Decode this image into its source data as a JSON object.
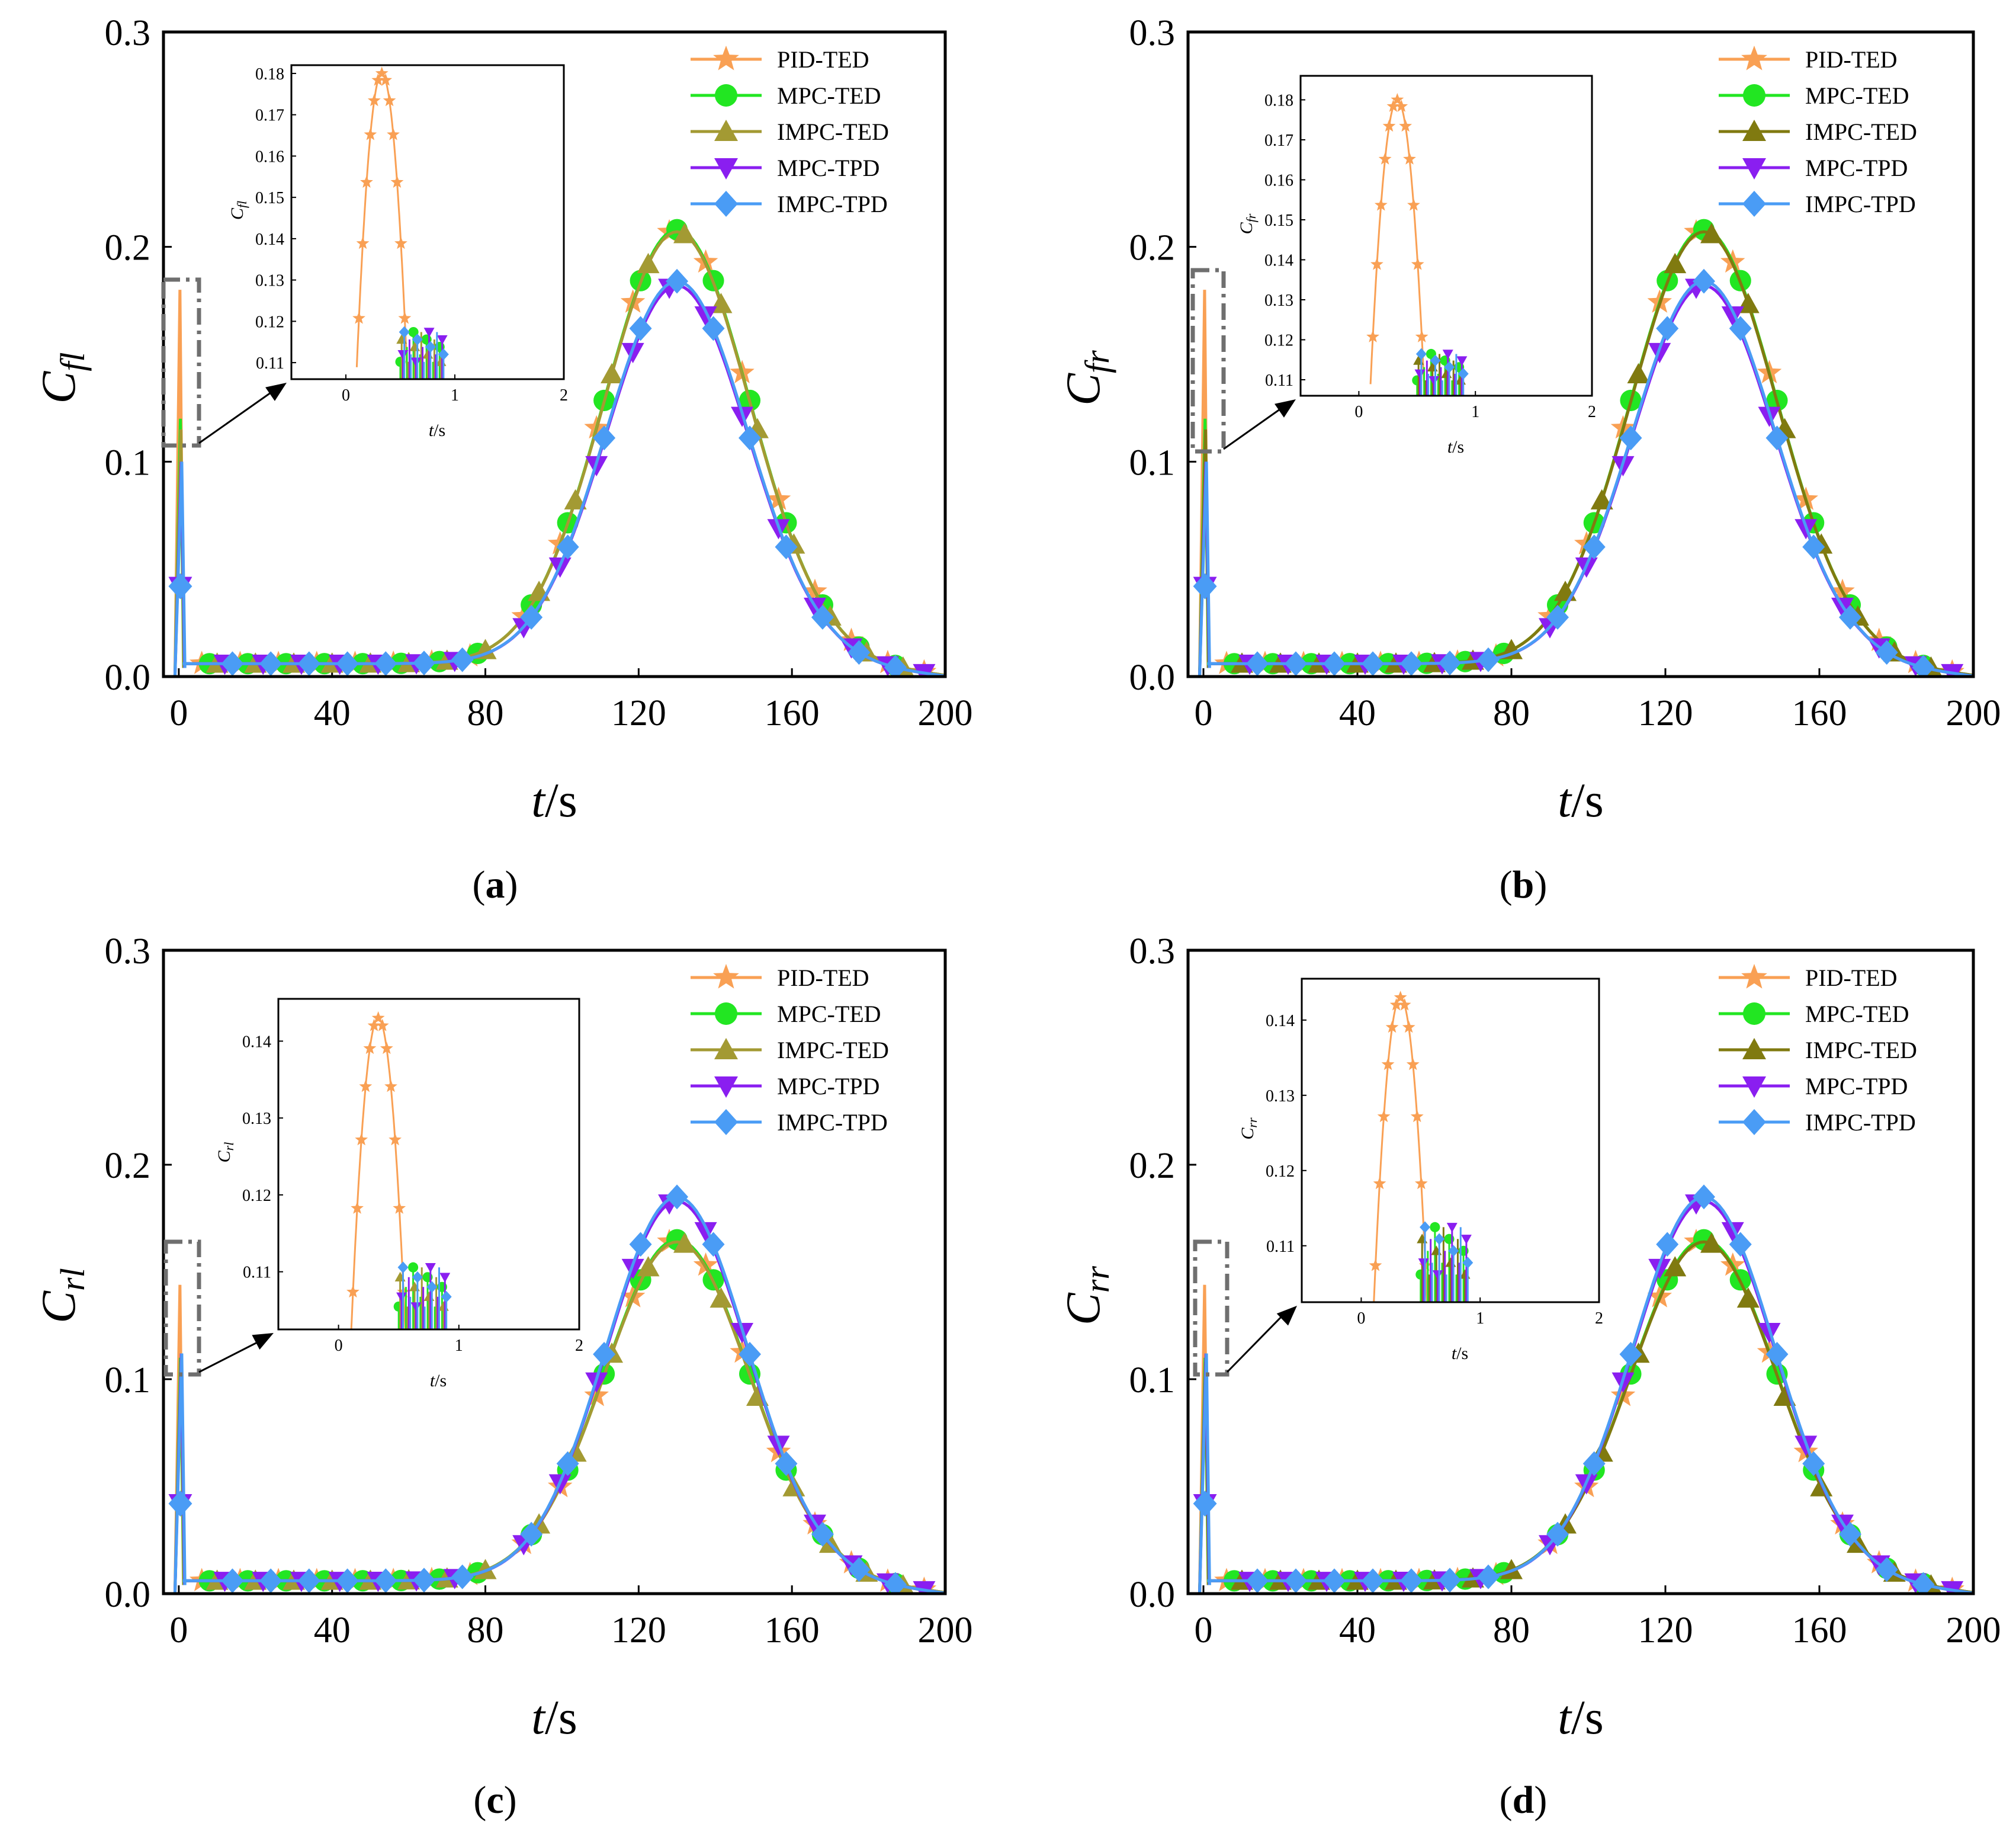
{
  "figure": {
    "panels": [
      {
        "id": "a",
        "caption_label": "a",
        "ylabel_main": "C",
        "ylabel_sub": "fl",
        "xlabel_main": "t",
        "xlabel_unit": "/s",
        "inset_ylabel_main": "C",
        "inset_ylabel_sub": "fl"
      },
      {
        "id": "b",
        "caption_label": "b",
        "ylabel_main": "C",
        "ylabel_sub": "fr",
        "xlabel_main": "t",
        "xlabel_unit": "/s",
        "inset_ylabel_main": "C",
        "inset_ylabel_sub": "fr"
      },
      {
        "id": "c",
        "caption_label": "c",
        "ylabel_main": "C",
        "ylabel_sub": "rl",
        "xlabel_main": "t",
        "xlabel_unit": "/s",
        "inset_ylabel_main": "C",
        "inset_ylabel_sub": "rl"
      },
      {
        "id": "d",
        "caption_label": "d",
        "ylabel_main": "C",
        "ylabel_sub": "rr",
        "xlabel_main": "t",
        "xlabel_unit": "/s",
        "inset_ylabel_main": "C",
        "inset_ylabel_sub": "rr"
      }
    ]
  },
  "chart_data": [
    {
      "type": "line",
      "panel": "a",
      "title": "",
      "xlabel": "t/s",
      "ylabel": "C_fl",
      "xlim": [
        -4,
        200
      ],
      "ylim": [
        0,
        0.3
      ],
      "xticks": [
        0,
        40,
        80,
        120,
        160,
        200
      ],
      "yticks": [
        0.0,
        0.1,
        0.2,
        0.3
      ],
      "xtick_labels": [
        "0",
        "40",
        "80",
        "120",
        "160",
        "200"
      ],
      "ytick_labels": [
        "0.0",
        "0.1",
        "0.2",
        "0.3"
      ],
      "legend": "top-right",
      "series": [
        {
          "name": "PID-TED",
          "color": "#f9a054",
          "marker": "star",
          "spike": 0.18,
          "plateau": 0.006,
          "peak": 0.208,
          "center": 130,
          "width": 19
        },
        {
          "name": "MPC-TED",
          "color": "#22e622",
          "marker": "circle",
          "spike": 0.12,
          "plateau": 0.006,
          "peak": 0.208,
          "center": 130,
          "width": 19
        },
        {
          "name": "IMPC-TED",
          "color": "#a39a33",
          "marker": "triangle-up",
          "spike": 0.115,
          "plateau": 0.006,
          "peak": 0.207,
          "center": 130,
          "width": 19
        },
        {
          "name": "MPC-TPD",
          "color": "#8a1ef0",
          "marker": "triangle-down",
          "spike": 0.1,
          "plateau": 0.006,
          "peak": 0.182,
          "center": 130,
          "width": 18.5
        },
        {
          "name": "IMPC-TPD",
          "color": "#4a9cf5",
          "marker": "diamond",
          "spike": 0.1,
          "plateau": 0.006,
          "peak": 0.184,
          "center": 130,
          "width": 18.5
        }
      ],
      "inset": {
        "xlim": [
          -0.5,
          2
        ],
        "ylim": [
          0.106,
          0.182
        ],
        "xticks": [
          0,
          1,
          2
        ],
        "yticks": [
          0.11,
          0.12,
          0.13,
          0.14,
          0.15,
          0.16,
          0.17,
          0.18
        ],
        "xtick_labels": [
          "0",
          "1",
          "2"
        ],
        "ytick_labels": [
          "0.11",
          "0.12",
          "0.13",
          "0.14",
          "0.15",
          "0.16",
          "0.17",
          "0.18"
        ],
        "xlabel": "t/s",
        "ylabel": "C_fl",
        "pid_peak": 0.18,
        "cluster_top": 0.118
      }
    },
    {
      "type": "line",
      "panel": "b",
      "title": "",
      "xlabel": "t/s",
      "ylabel": "C_fr",
      "xlim": [
        -4,
        200
      ],
      "ylim": [
        0,
        0.3
      ],
      "xticks": [
        0,
        40,
        80,
        120,
        160,
        200
      ],
      "yticks": [
        0.0,
        0.1,
        0.2,
        0.3
      ],
      "xtick_labels": [
        "0",
        "40",
        "80",
        "120",
        "160",
        "200"
      ],
      "ytick_labels": [
        "0.0",
        "0.1",
        "0.2",
        "0.3"
      ],
      "legend": "top-right",
      "series": [
        {
          "name": "PID-TED",
          "color": "#f9a054",
          "marker": "star",
          "spike": 0.18,
          "plateau": 0.006,
          "peak": 0.208,
          "center": 130,
          "width": 19
        },
        {
          "name": "MPC-TED",
          "color": "#22e622",
          "marker": "circle",
          "spike": 0.12,
          "plateau": 0.006,
          "peak": 0.208,
          "center": 130,
          "width": 19
        },
        {
          "name": "IMPC-TED",
          "color": "#807a10",
          "marker": "triangle-up",
          "spike": 0.115,
          "plateau": 0.006,
          "peak": 0.207,
          "center": 130,
          "width": 19
        },
        {
          "name": "MPC-TPD",
          "color": "#8a1ef0",
          "marker": "triangle-down",
          "spike": 0.1,
          "plateau": 0.006,
          "peak": 0.182,
          "center": 130,
          "width": 18.5
        },
        {
          "name": "IMPC-TPD",
          "color": "#4a9cf5",
          "marker": "diamond",
          "spike": 0.1,
          "plateau": 0.006,
          "peak": 0.184,
          "center": 130,
          "width": 18.5
        }
      ],
      "inset": {
        "xlim": [
          -0.5,
          2
        ],
        "ylim": [
          0.106,
          0.186
        ],
        "xticks": [
          0,
          1,
          2
        ],
        "yticks": [
          0.11,
          0.12,
          0.13,
          0.14,
          0.15,
          0.16,
          0.17,
          0.18
        ],
        "xtick_labels": [
          "0",
          "1",
          "2"
        ],
        "ytick_labels": [
          "0.11",
          "0.12",
          "0.13",
          "0.14",
          "0.15",
          "0.16",
          "0.17",
          "0.18"
        ],
        "xlabel": "t/s",
        "ylabel": "C_fr",
        "pid_peak": 0.18,
        "cluster_top": 0.117
      }
    },
    {
      "type": "line",
      "panel": "c",
      "title": "",
      "xlabel": "t/s",
      "ylabel": "C_rl",
      "xlim": [
        -4,
        200
      ],
      "ylim": [
        0,
        0.3
      ],
      "xticks": [
        0,
        40,
        80,
        120,
        160,
        200
      ],
      "yticks": [
        0.0,
        0.1,
        0.2,
        0.3
      ],
      "xtick_labels": [
        "0",
        "40",
        "80",
        "120",
        "160",
        "200"
      ],
      "ytick_labels": [
        "0.0",
        "0.1",
        "0.2",
        "0.3"
      ],
      "legend": "top-right",
      "series": [
        {
          "name": "PID-TED",
          "color": "#f9a054",
          "marker": "star",
          "spike": 0.144,
          "plateau": 0.006,
          "peak": 0.165,
          "center": 130,
          "width": 19
        },
        {
          "name": "MPC-TED",
          "color": "#22e622",
          "marker": "circle",
          "spike": 0.11,
          "plateau": 0.006,
          "peak": 0.165,
          "center": 130,
          "width": 19
        },
        {
          "name": "IMPC-TED",
          "color": "#a39a33",
          "marker": "triangle-up",
          "spike": 0.108,
          "plateau": 0.006,
          "peak": 0.164,
          "center": 130,
          "width": 19
        },
        {
          "name": "MPC-TPD",
          "color": "#8a1ef0",
          "marker": "triangle-down",
          "spike": 0.112,
          "plateau": 0.006,
          "peak": 0.183,
          "center": 130,
          "width": 18.5
        },
        {
          "name": "IMPC-TPD",
          "color": "#4a9cf5",
          "marker": "diamond",
          "spike": 0.112,
          "plateau": 0.006,
          "peak": 0.185,
          "center": 130,
          "width": 18.5
        }
      ],
      "inset": {
        "xlim": [
          -0.5,
          2
        ],
        "ylim": [
          0.1025,
          0.1455
        ],
        "xticks": [
          0,
          1,
          2
        ],
        "yticks": [
          0.11,
          0.12,
          0.13,
          0.14
        ],
        "xtick_labels": [
          "0",
          "1",
          "2"
        ],
        "ytick_labels": [
          "0.11",
          "0.12",
          "0.13",
          "0.14"
        ],
        "xlabel": "t/s",
        "ylabel": "C_rl",
        "pid_peak": 0.143,
        "cluster_top": 0.111
      }
    },
    {
      "type": "line",
      "panel": "d",
      "title": "",
      "xlabel": "t/s",
      "ylabel": "C_rr",
      "xlim": [
        -4,
        200
      ],
      "ylim": [
        0,
        0.3
      ],
      "xticks": [
        0,
        40,
        80,
        120,
        160,
        200
      ],
      "yticks": [
        0.0,
        0.1,
        0.2,
        0.3
      ],
      "xtick_labels": [
        "0",
        "40",
        "80",
        "120",
        "160",
        "200"
      ],
      "ytick_labels": [
        "0.0",
        "0.1",
        "0.2",
        "0.3"
      ],
      "legend": "top-right",
      "series": [
        {
          "name": "PID-TED",
          "color": "#f9a054",
          "marker": "star",
          "spike": 0.144,
          "plateau": 0.006,
          "peak": 0.165,
          "center": 130,
          "width": 19
        },
        {
          "name": "MPC-TED",
          "color": "#22e622",
          "marker": "circle",
          "spike": 0.11,
          "plateau": 0.006,
          "peak": 0.165,
          "center": 130,
          "width": 19
        },
        {
          "name": "IMPC-TED",
          "color": "#807a10",
          "marker": "triangle-up",
          "spike": 0.108,
          "plateau": 0.006,
          "peak": 0.164,
          "center": 130,
          "width": 19
        },
        {
          "name": "MPC-TPD",
          "color": "#8a1ef0",
          "marker": "triangle-down",
          "spike": 0.112,
          "plateau": 0.006,
          "peak": 0.183,
          "center": 130,
          "width": 18.5
        },
        {
          "name": "IMPC-TPD",
          "color": "#4a9cf5",
          "marker": "diamond",
          "spike": 0.112,
          "plateau": 0.006,
          "peak": 0.185,
          "center": 130,
          "width": 18.5
        }
      ],
      "inset": {
        "xlim": [
          -0.5,
          2
        ],
        "ylim": [
          0.1025,
          0.1455
        ],
        "xticks": [
          0,
          1,
          2
        ],
        "yticks": [
          0.11,
          0.12,
          0.13,
          0.14
        ],
        "xtick_labels": [
          "0",
          "1",
          "2"
        ],
        "ytick_labels": [
          "0.11",
          "0.12",
          "0.13",
          "0.14"
        ],
        "xlabel": "t/s",
        "ylabel": "C_rr",
        "pid_peak": 0.143,
        "cluster_top": 0.113
      }
    }
  ]
}
